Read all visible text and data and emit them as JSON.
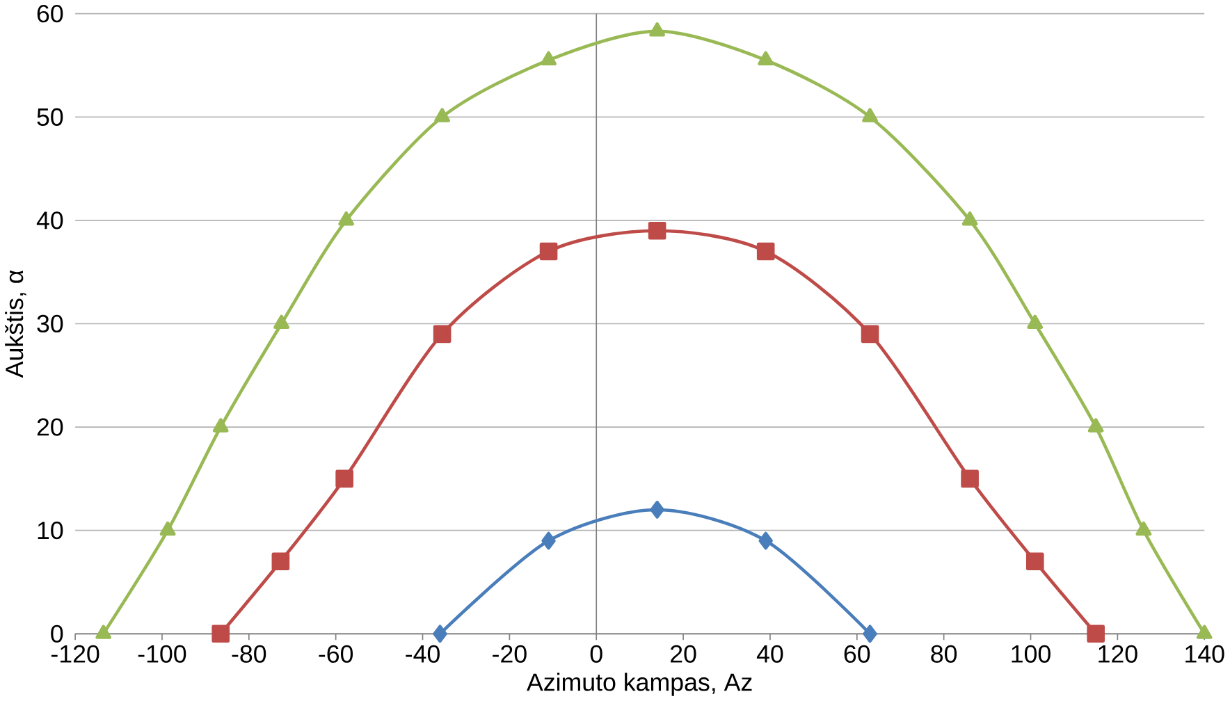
{
  "chart_data": {
    "type": "line",
    "xlabel": "Azimuto kampas, Az",
    "ylabel": "Aukštis, α",
    "xlim": [
      -120,
      140
    ],
    "xticks": [
      -120,
      -100,
      -80,
      -60,
      -40,
      -20,
      0,
      20,
      40,
      60,
      80,
      100,
      120,
      140
    ],
    "ylim": [
      0,
      60
    ],
    "yticks": [
      0,
      10,
      20,
      30,
      40,
      50,
      60
    ],
    "grid": "y",
    "line_style": "solid",
    "series": [
      {
        "color": "#4a7ebb",
        "marker": "diamond",
        "x": [
          -36,
          -11,
          14,
          39,
          63
        ],
        "values": [
          0,
          9,
          12,
          9,
          0
        ]
      },
      {
        "color": "#be4b48",
        "marker": "square",
        "x": [
          -86.5,
          -72.7,
          -58,
          -35.5,
          -11,
          14,
          39,
          63,
          86,
          101,
          115
        ],
        "values": [
          0,
          7,
          15,
          29,
          37,
          39,
          37,
          29,
          15,
          7,
          0
        ]
      },
      {
        "color": "#98b954",
        "marker": "triangle",
        "x": [
          -113.5,
          -98.7,
          -86.5,
          -72.5,
          -57.6,
          -35.5,
          -11,
          14,
          39,
          63,
          86,
          101,
          115,
          126,
          140
        ],
        "values": [
          0,
          10,
          20,
          30,
          40,
          50,
          55.5,
          58.3,
          55.5,
          50,
          40,
          30,
          20,
          10,
          0
        ]
      }
    ]
  }
}
